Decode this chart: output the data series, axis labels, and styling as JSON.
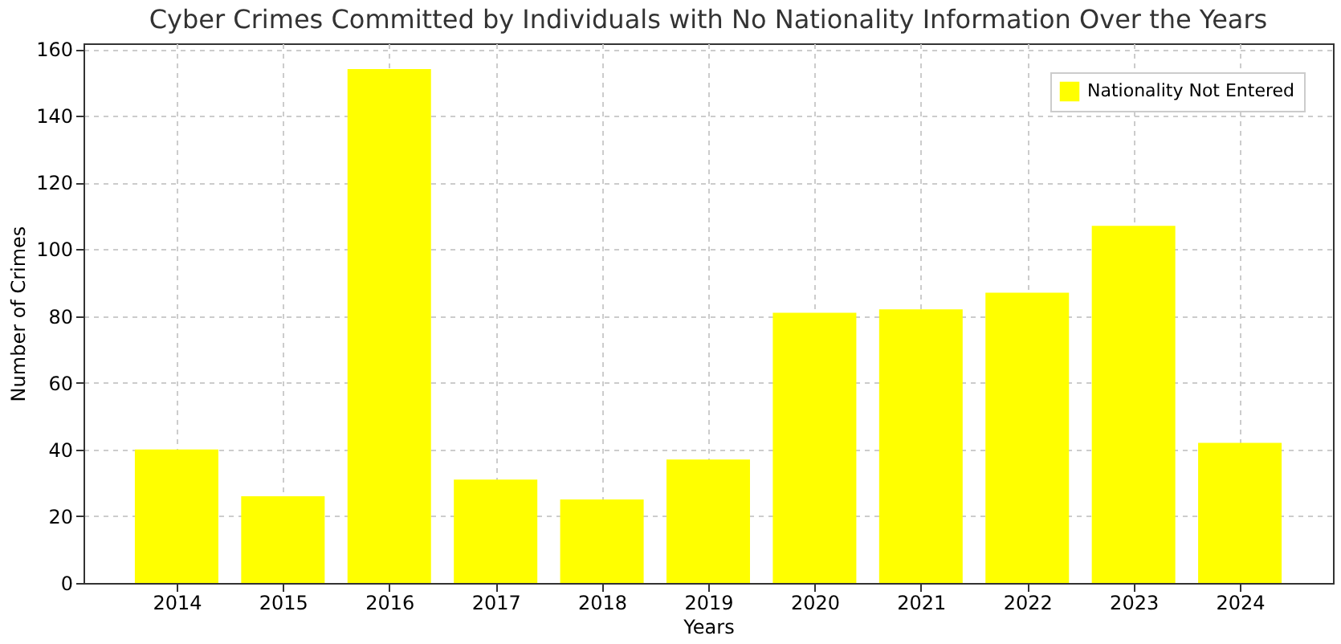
{
  "chart_data": {
    "type": "bar",
    "title": "Cyber Crimes Committed by Individuals with No Nationality Information Over the Years",
    "xlabel": "Years",
    "ylabel": "Number of Crimes",
    "categories": [
      "2014",
      "2015",
      "2016",
      "2017",
      "2018",
      "2019",
      "2020",
      "2021",
      "2022",
      "2023",
      "2024"
    ],
    "series": [
      {
        "name": "Nationality Not Entered",
        "color": "#ffff00",
        "values": [
          40,
          26,
          154,
          31,
          25,
          37,
          81,
          82,
          87,
          107,
          42
        ]
      }
    ],
    "ylim": [
      0,
      161.7
    ],
    "yticks": [
      0,
      20,
      40,
      60,
      80,
      100,
      120,
      140,
      160
    ],
    "grid": true,
    "legend": "top right"
  }
}
